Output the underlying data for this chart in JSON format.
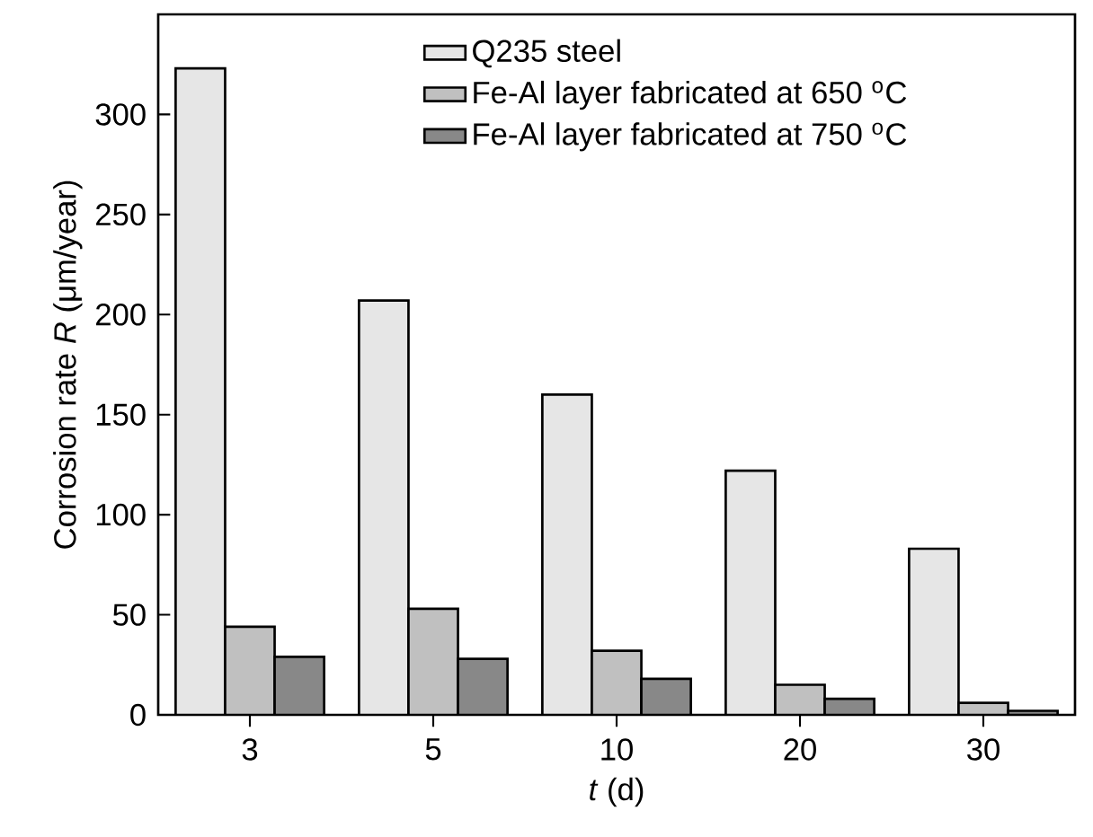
{
  "chart_data": {
    "type": "bar",
    "categories": [
      "3",
      "5",
      "10",
      "20",
      "30"
    ],
    "xlabel": "*t* (d)",
    "ylabel": "Corrosion rate *R* (μm/year)",
    "ylim": [
      0,
      350
    ],
    "yticks": [
      0,
      50,
      100,
      150,
      200,
      250,
      300
    ],
    "legend": "top right",
    "series": [
      {
        "name": "Q235 steel",
        "color": "#e6e6e6",
        "values": [
          323,
          207,
          160,
          122,
          83
        ]
      },
      {
        "name": "Fe-Al layer fabricated at 650 $^{o}$C",
        "color": "#c0c0c0",
        "values": [
          44,
          53,
          32,
          15,
          6
        ]
      },
      {
        "name": "Fe-Al layer fabricated at 750 $^{o}$C",
        "color": "#888888",
        "values": [
          29,
          28,
          18,
          8,
          2
        ]
      }
    ]
  }
}
